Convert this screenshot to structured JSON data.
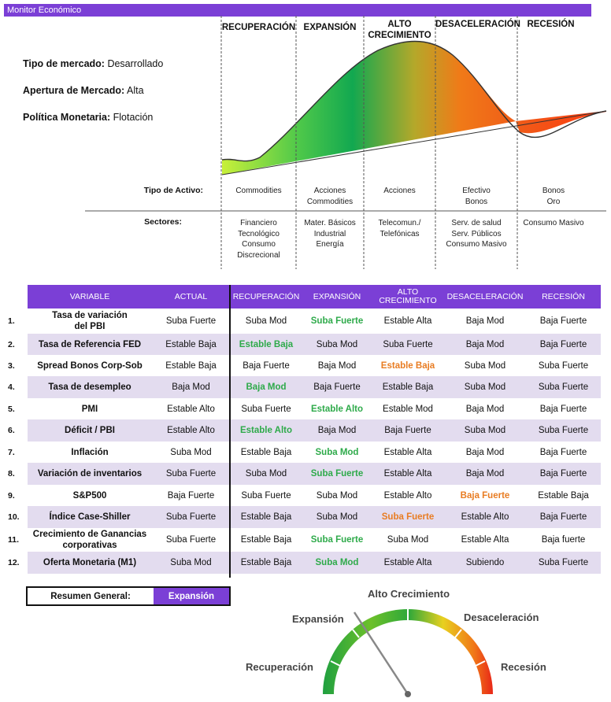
{
  "header": {
    "title": "Monitor Económico"
  },
  "info": {
    "market_type_label": "Tipo de mercado:",
    "market_type_value": "Desarrollado",
    "opening_label": "Apertura de Mercado:",
    "opening_value": "Alta",
    "policy_label": "Política Monetaria:",
    "policy_value": "Flotación"
  },
  "phases": {
    "recuperacion": "RECUPERACIÓN",
    "expansion": "EXPANSIÓN",
    "alto_line1": "ALTO",
    "alto_line2": "CRECIMIENTO",
    "desaceleracion": "DESACELERACIÓN",
    "recesion": "RECESIÓN"
  },
  "asset_row": {
    "label": "Tipo de Activo:",
    "recuperacion": "Commodities",
    "expansion_1": "Acciones",
    "expansion_2": "Commodities",
    "alto": "Acciones",
    "desaceleracion_1": "Efectivo",
    "desaceleracion_2": "Bonos",
    "recesion_1": "Bonos",
    "recesion_2": "Oro"
  },
  "sector_row": {
    "label": "Sectores:",
    "recuperacion": [
      "Financiero",
      "Tecnológico",
      "Consumo",
      "Discrecional"
    ],
    "expansion": [
      "Mater. Básicos",
      "Industrial",
      "Energía"
    ],
    "alto": [
      "Telecomun./",
      "Telefónicas"
    ],
    "desaceleracion": [
      "Serv. de salud",
      "Serv. Públicos",
      "Consumo Masivo"
    ],
    "recesion": [
      "Consumo Masivo"
    ]
  },
  "table": {
    "headers": {
      "variable": "VARIABLE",
      "actual": "ACTUAL",
      "recuperacion": "RECUPERACIÓN",
      "expansion": "EXPANSIÓN",
      "alto_1": "ALTO",
      "alto_2": "CRECIMIENTO",
      "desaceleracion": "DESACELERACIÓN",
      "recesion": "RECESIÓN"
    },
    "rows": [
      {
        "num": "1.",
        "name": [
          "Tasa de variación",
          "del PBI"
        ],
        "actual": "Suba Fuerte",
        "rec": "Suba Mod",
        "exp": "Suba Fuerte",
        "alto": "Estable Alta",
        "desa": "Baja Mod",
        "rcs": "Baja Fuerte"
      },
      {
        "num": "2.",
        "name": [
          "Tasa de Referencia FED"
        ],
        "actual": "Estable Baja",
        "rec": "Estable Baja",
        "exp": "Suba Mod",
        "alto": "Suba Fuerte",
        "desa": "Baja Mod",
        "rcs": "Baja Fuerte"
      },
      {
        "num": "3.",
        "name": [
          "Spread Bonos Corp-Sob"
        ],
        "actual": "Estable Baja",
        "rec": "Baja Fuerte",
        "exp": "Baja Mod",
        "alto": "Estable Baja",
        "desa": "Suba Mod",
        "rcs": "Suba Fuerte"
      },
      {
        "num": "4.",
        "name": [
          "Tasa de desempleo"
        ],
        "actual": "Baja Mod",
        "rec": "Baja Mod",
        "exp": "Baja Fuerte",
        "alto": "Estable Baja",
        "desa": "Suba Mod",
        "rcs": "Suba Fuerte"
      },
      {
        "num": "5.",
        "name": [
          "PMI"
        ],
        "actual": "Estable Alto",
        "rec": "Suba Fuerte",
        "exp": "Estable Alto",
        "alto": "Estable Mod",
        "desa": "Baja Mod",
        "rcs": "Baja Fuerte"
      },
      {
        "num": "6.",
        "name": [
          "Déficit / PBI"
        ],
        "actual": "Estable Alto",
        "rec": "Estable Alto",
        "exp": "Baja Mod",
        "alto": "Baja Fuerte",
        "desa": "Suba Mod",
        "rcs": "Suba Fuerte"
      },
      {
        "num": "7.",
        "name": [
          "Inflación"
        ],
        "actual": "Suba Mod",
        "rec": "Estable Baja",
        "exp": "Suba Mod",
        "alto": "Estable Alta",
        "desa": "Baja Mod",
        "rcs": "Baja Fuerte"
      },
      {
        "num": "8.",
        "name": [
          "Variación de inventarios"
        ],
        "actual": "Suba Fuerte",
        "rec": "Suba Mod",
        "exp": "Suba Fuerte",
        "alto": "Estable Alta",
        "desa": "Baja Mod",
        "rcs": "Baja Fuerte"
      },
      {
        "num": "9.",
        "name": [
          "S&P500"
        ],
        "actual": "Baja Fuerte",
        "rec": "Suba Fuerte",
        "exp": "Suba Mod",
        "alto": "Estable Alto",
        "desa": "Baja Fuerte",
        "rcs": "Estable Baja"
      },
      {
        "num": "10.",
        "name": [
          "Índice Case-Shiller"
        ],
        "actual": "Suba Fuerte",
        "rec": "Estable Baja",
        "exp": "Suba Mod",
        "alto": "Suba Fuerte",
        "desa": "Estable Alto",
        "rcs": "Baja Fuerte"
      },
      {
        "num": "11.",
        "name": [
          "Crecimiento de Ganancias",
          "corporativas"
        ],
        "actual": "Suba Fuerte",
        "rec": "Estable Baja",
        "exp": "Suba Fuerte",
        "alto": "Suba Mod",
        "desa": "Estable Alta",
        "rcs": "Baja fuerte"
      },
      {
        "num": "12.",
        "name": [
          "Oferta Monetaria (M1)"
        ],
        "actual": "Suba Mod",
        "rec": "Estable Baja",
        "exp": "Suba Mod",
        "alto": "Estable Alta",
        "desa": "Subiendo",
        "rcs": "Suba Fuerte"
      }
    ]
  },
  "summary": {
    "label": "Resumen General:",
    "value": "Expansión"
  },
  "gauge": {
    "recuperacion": "Recuperación",
    "expansion": "Expansión",
    "alto": "Alto Crecimiento",
    "desaceleracion": "Desaceleración",
    "recesion": "Recesión"
  }
}
